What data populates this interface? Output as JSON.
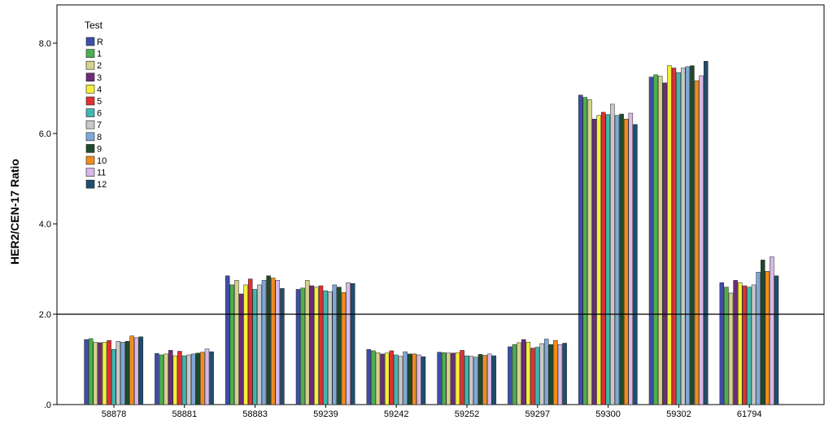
{
  "chart_data": {
    "type": "bar",
    "ylabel": "HER2/CEN-17 Ratio",
    "xlabel": "",
    "ylim": [
      0,
      8.0
    ],
    "yticks": [
      ".0",
      "2.0",
      "4.0",
      "6.0",
      "8.0"
    ],
    "ytick_values": [
      0,
      2,
      4,
      6,
      8
    ],
    "reference_line": 2.0,
    "legend_title": "Test",
    "legend_position": "top-left",
    "grid": false,
    "categories": [
      "58878",
      "58881",
      "58883",
      "59239",
      "59242",
      "59252",
      "59297",
      "59300",
      "59302",
      "61794"
    ],
    "series": [
      {
        "name": "R",
        "color": "#3d4fa8",
        "values": [
          1.44,
          1.13,
          2.85,
          2.55,
          1.22,
          1.16,
          1.28,
          6.85,
          7.25,
          2.7
        ]
      },
      {
        "name": "1",
        "color": "#4caf50",
        "values": [
          1.46,
          1.1,
          2.65,
          2.58,
          1.19,
          1.15,
          1.33,
          6.8,
          7.3,
          2.6
        ]
      },
      {
        "name": "2",
        "color": "#d6d28a",
        "values": [
          1.38,
          1.12,
          2.75,
          2.75,
          1.15,
          1.14,
          1.37,
          6.75,
          7.27,
          2.47
        ]
      },
      {
        "name": "3",
        "color": "#6b2d7a",
        "values": [
          1.37,
          1.2,
          2.45,
          2.63,
          1.12,
          1.14,
          1.44,
          6.32,
          7.12,
          2.75
        ]
      },
      {
        "name": "4",
        "color": "#f5ef3a",
        "values": [
          1.38,
          1.08,
          2.65,
          2.6,
          1.14,
          1.15,
          1.38,
          6.4,
          7.5,
          2.7
        ]
      },
      {
        "name": "5",
        "color": "#e03030",
        "values": [
          1.42,
          1.18,
          2.78,
          2.63,
          1.19,
          1.2,
          1.25,
          6.47,
          7.45,
          2.63
        ]
      },
      {
        "name": "6",
        "color": "#40b8b0",
        "values": [
          1.22,
          1.08,
          2.55,
          2.52,
          1.1,
          1.08,
          1.27,
          6.42,
          7.35,
          2.6
        ]
      },
      {
        "name": "7",
        "color": "#c8c8c8",
        "values": [
          1.4,
          1.1,
          2.65,
          2.5,
          1.07,
          1.07,
          1.35,
          6.65,
          7.45,
          2.65
        ]
      },
      {
        "name": "8",
        "color": "#7fa8d8",
        "values": [
          1.38,
          1.12,
          2.75,
          2.65,
          1.17,
          1.05,
          1.45,
          6.4,
          7.48,
          2.93
        ]
      },
      {
        "name": "9",
        "color": "#1f4a2a",
        "values": [
          1.4,
          1.14,
          2.85,
          2.6,
          1.12,
          1.11,
          1.33,
          6.43,
          7.5,
          3.2
        ]
      },
      {
        "name": "10",
        "color": "#f08c1e",
        "values": [
          1.52,
          1.16,
          2.8,
          2.48,
          1.12,
          1.09,
          1.42,
          6.32,
          7.17,
          2.95
        ]
      },
      {
        "name": "11",
        "color": "#d8b8e8",
        "values": [
          1.48,
          1.23,
          2.75,
          2.7,
          1.1,
          1.12,
          1.33,
          6.45,
          7.28,
          3.27
        ]
      },
      {
        "name": "12",
        "color": "#1f4e6e",
        "values": [
          1.5,
          1.17,
          2.57,
          2.68,
          1.06,
          1.08,
          1.36,
          6.2,
          7.6,
          2.85
        ]
      }
    ]
  }
}
